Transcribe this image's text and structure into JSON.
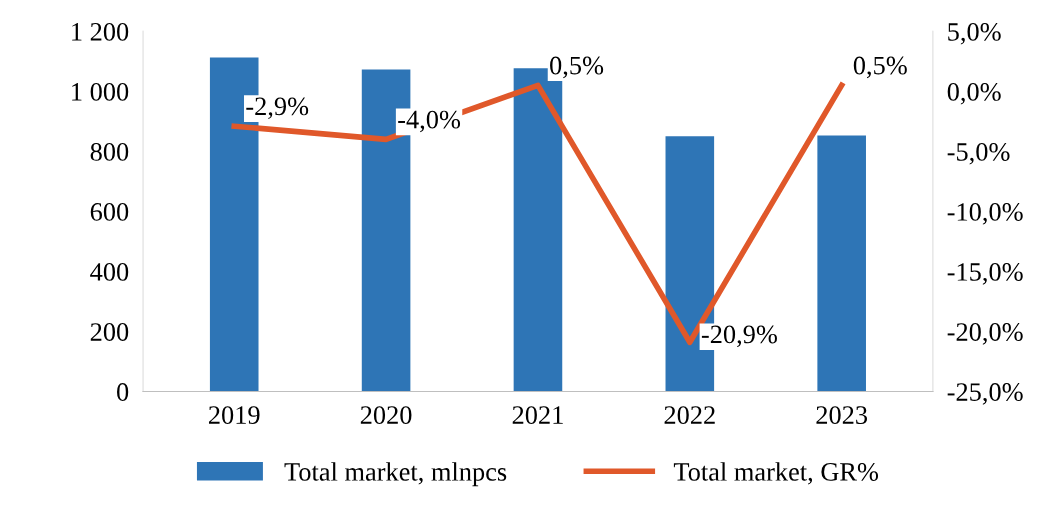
{
  "chart_data": {
    "type": "bar",
    "categories": [
      "2019",
      "2020",
      "2021",
      "2022",
      "2023"
    ],
    "series": [
      {
        "name": "Total market, mlnpcs",
        "type": "bar",
        "color": "#2e75b6",
        "values": [
          1113,
          1073,
          1077,
          850,
          853
        ]
      },
      {
        "name": "Total market, GR%",
        "type": "line",
        "axis": "y2",
        "color": "#e0582a",
        "values": [
          -2.9,
          -4.0,
          0.5,
          -20.9,
          0.5
        ],
        "value_labels": [
          "-2,9%",
          "-4,0%",
          "0,5%",
          "-20,9%",
          "0,5%"
        ]
      }
    ],
    "ylim": [
      0,
      1200
    ],
    "yticks": [
      0,
      200,
      400,
      600,
      800,
      {
        "value": 1000,
        "label": "1 000"
      },
      {
        "value": 1200,
        "label": "1 200"
      }
    ],
    "y2lim": [
      -25,
      5
    ],
    "y2ticks": [
      {
        "value": -25,
        "label": "-25,0%"
      },
      {
        "value": -20,
        "label": "-20,0%"
      },
      {
        "value": -15,
        "label": "-15,0%"
      },
      {
        "value": -10,
        "label": "-10,0%"
      },
      {
        "value": -5,
        "label": "-5,0%"
      },
      {
        "value": 0,
        "label": "0,0%"
      },
      {
        "value": 5,
        "label": "5,0%"
      }
    ],
    "grid": false,
    "legend": "bottom",
    "marker": "none",
    "line_style": "solid"
  }
}
